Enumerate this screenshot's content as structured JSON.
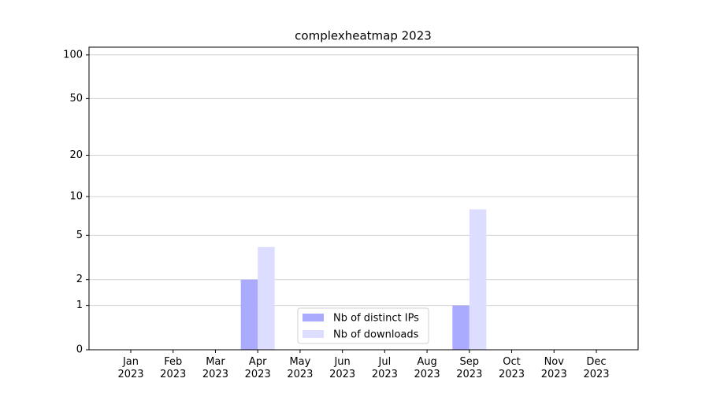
{
  "chart_data": {
    "type": "bar",
    "title": "complexheatmap 2023",
    "categories": [
      "Jan\n2023",
      "Feb\n2023",
      "Mar\n2023",
      "Apr\n2023",
      "May\n2023",
      "Jun\n2023",
      "Jul\n2023",
      "Aug\n2023",
      "Sep\n2023",
      "Oct\n2023",
      "Nov\n2023",
      "Dec\n2023"
    ],
    "series": [
      {
        "name": "Nb of distinct IPs",
        "color": "#aaaaff",
        "values": [
          0,
          0,
          0,
          2,
          0,
          0,
          0,
          0,
          1,
          0,
          0,
          0
        ]
      },
      {
        "name": "Nb of downloads",
        "color": "#ddddff",
        "values": [
          0,
          0,
          0,
          4,
          0,
          0,
          0,
          0,
          8,
          0,
          0,
          0
        ]
      }
    ],
    "yscale": "log1p",
    "ylim": [
      0,
      113
    ],
    "yticks": [
      0,
      1,
      2,
      5,
      10,
      20,
      50,
      100
    ],
    "grid": true,
    "legend": "lower center"
  }
}
